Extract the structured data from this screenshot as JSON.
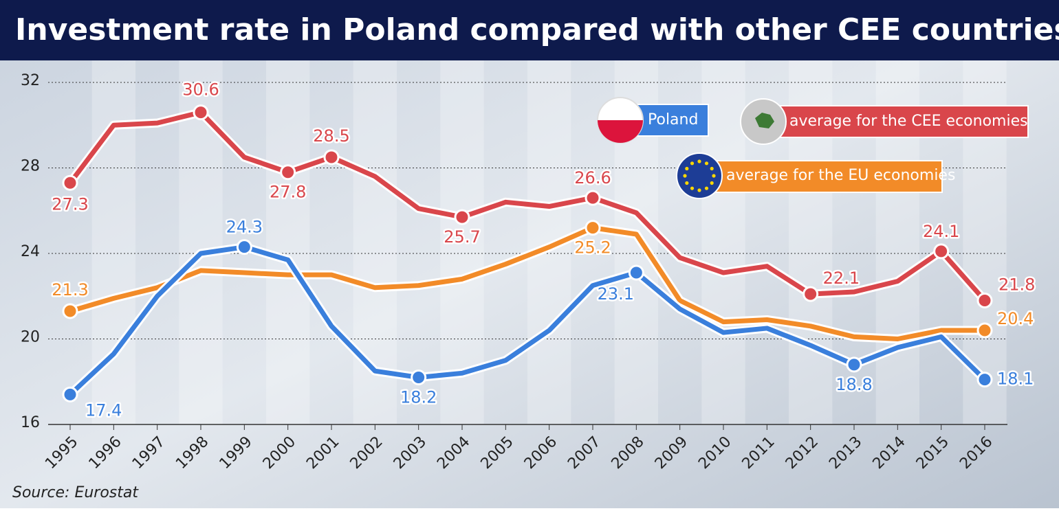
{
  "chart_data": {
    "type": "line",
    "title": "Investment rate in Poland compared with other CEE countries",
    "source": "Source: Eurostat",
    "x": [
      "1995",
      "1996",
      "1997",
      "1998",
      "1999",
      "2000",
      "2001",
      "2002",
      "2003",
      "2004",
      "2005",
      "2006",
      "2007",
      "2008",
      "2009",
      "2010",
      "2011",
      "2012",
      "2013",
      "2014",
      "2015",
      "2016"
    ],
    "ylim": [
      16,
      32
    ],
    "yticks": [
      16,
      20,
      24,
      28,
      32
    ],
    "grid": true,
    "series": [
      {
        "name": "Poland",
        "color": "#3a7fdc",
        "values": [
          17.4,
          19.3,
          22.0,
          24.0,
          24.3,
          23.7,
          20.6,
          18.5,
          18.2,
          18.4,
          19.0,
          20.4,
          22.5,
          23.1,
          21.4,
          20.3,
          20.5,
          19.7,
          18.8,
          19.6,
          20.1,
          18.1
        ],
        "value_labels": [
          "17.4",
          null,
          null,
          null,
          "24.3",
          null,
          null,
          null,
          "18.2",
          null,
          null,
          null,
          null,
          "23.1",
          null,
          null,
          null,
          null,
          "18.8",
          null,
          null,
          "18.1"
        ]
      },
      {
        "name": "average for the CEE economies",
        "color": "#d9464b",
        "values": [
          27.3,
          30.0,
          30.1,
          30.6,
          28.5,
          27.8,
          28.5,
          27.6,
          26.1,
          25.7,
          26.4,
          26.2,
          26.6,
          25.9,
          23.8,
          23.1,
          23.4,
          22.1,
          22.2,
          22.7,
          24.1,
          21.8
        ],
        "value_labels": [
          "27.3",
          null,
          null,
          "30.6",
          null,
          "27.8",
          "28.5",
          null,
          null,
          "25.7",
          null,
          null,
          "26.6",
          null,
          null,
          null,
          null,
          "22.1",
          null,
          null,
          "24.1",
          "21.8"
        ]
      },
      {
        "name": "average for the EU economies",
        "color": "#f28b28",
        "values": [
          21.3,
          21.9,
          22.4,
          23.2,
          23.1,
          23.0,
          23.0,
          22.4,
          22.5,
          22.8,
          23.5,
          24.3,
          25.2,
          24.9,
          21.8,
          20.8,
          20.9,
          20.6,
          20.1,
          20.0,
          20.4,
          20.4
        ],
        "value_labels": [
          "21.3",
          null,
          null,
          null,
          null,
          null,
          null,
          null,
          null,
          null,
          null,
          null,
          "25.2",
          null,
          null,
          null,
          null,
          null,
          null,
          null,
          null,
          "20.4"
        ]
      }
    ]
  }
}
